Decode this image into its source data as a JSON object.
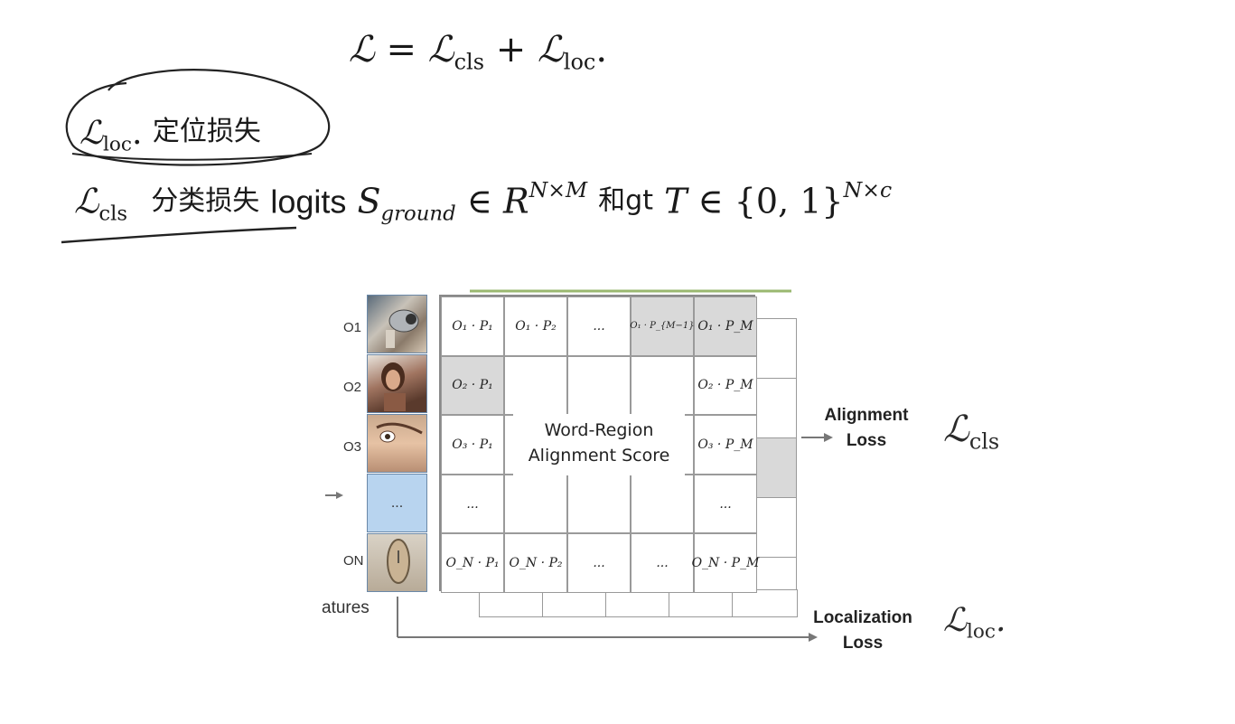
{
  "equations": {
    "total": {
      "lhs": "ℒ",
      "eq": " = ",
      "t1": "ℒ",
      "t1_sub": "cls",
      "plus": " + ",
      "t2": "ℒ",
      "t2_sub": "loc",
      "end": "."
    },
    "loc_line": {
      "sym": "ℒ",
      "sub": "loc",
      "dot": ".",
      "text": "定位损失"
    },
    "cls_line": {
      "sym": "ℒ",
      "sub": "cls",
      "text": "分类损失",
      "logits": "logits",
      "S": "S",
      "S_sub": "ground",
      "in1": " ∈ ",
      "R": "R",
      "R_sup": "N×M",
      "gt": "和gt",
      "T": "T",
      "in2": " ∈ ",
      "set": "{0, 1}",
      "set_sup": "N×c"
    }
  },
  "diagram": {
    "rows": [
      [
        "O₁ · P₁",
        "O₁ · P₂",
        "...",
        "O₁ · P_{M−1}",
        "O₁ · P_M"
      ],
      [
        "O₂ · P₁",
        "",
        "",
        "",
        "O₂ · P_M"
      ],
      [
        "O₃ · P₁",
        "",
        "",
        "",
        "O₃ · P_M"
      ],
      [
        "...",
        "",
        "",
        "",
        "..."
      ],
      [
        "O_N · P₁",
        "O_N · P₂",
        "...",
        "...",
        "O_N · P_M"
      ]
    ],
    "score_label": [
      "Word-Region",
      "Alignment Score"
    ],
    "object_labels": [
      "O1",
      "O2",
      "O3",
      "ON"
    ],
    "ellipsis_box": "...",
    "features_label": "atures",
    "alignment_loss": [
      "Alignment",
      "Loss"
    ],
    "localization_loss": [
      "Localization",
      "Loss"
    ],
    "loss_cls": {
      "sym": "ℒ",
      "sub": "cls"
    },
    "loss_loc": {
      "sym": "ℒ",
      "sub": "loc",
      "dot": "."
    }
  },
  "colors": {
    "ellipsis_box": "#b8d4ef",
    "highlight_cell": "#d9d9d9",
    "top_bar": "#9ab870"
  }
}
